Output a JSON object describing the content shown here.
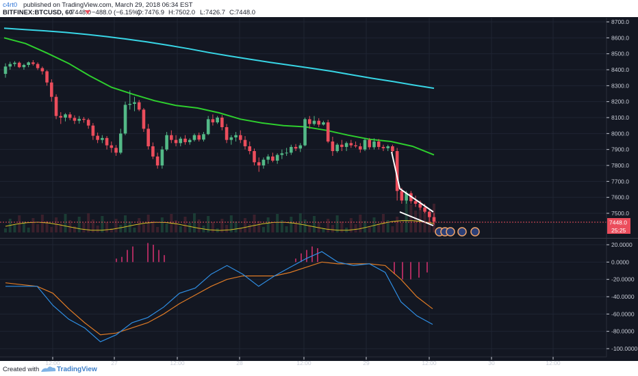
{
  "header": {
    "author": "c4rt0",
    "published": " published on TradingView.com, March 29, 2018 06:34 EST",
    "symbol": "BITFINEX:BTCUSD, 60",
    "last": "7448.0",
    "change": "−488.0 (−6.15%)",
    "ohlc": {
      "o_label": "O:",
      "o": "7476.9",
      "h_label": "H:",
      "h": "7502.0",
      "l_label": "L:",
      "l": "7426.7",
      "c_label": "C:",
      "c": "7448.0"
    }
  },
  "footer": {
    "created_with": "Created with",
    "brand": "TradingView"
  },
  "colors": {
    "background": "#131722",
    "grid": "#1f2433",
    "bull": "#53b987",
    "bear": "#eb4d5c",
    "ma_cyan": "#38d6e6",
    "ma_green": "#2ecf2e",
    "ma_yellow": "#d4c226",
    "macd_line": "#2f8fe5",
    "signal_line": "#e07b25",
    "histogram": "#d0306d",
    "price_tag": "#eb4d5c",
    "trendlines": "#ffffff"
  },
  "chart_data": [
    {
      "type": "candlestick",
      "title": "BITFINEX:BTCUSD, 60",
      "ylim": [
        7400,
        8760
      ],
      "yticks": [
        "8700.0",
        "8600.0",
        "8500.0",
        "8400.0",
        "8300.0",
        "8200.0",
        "8100.0",
        "8000.0",
        "7900.0",
        "7800.0",
        "7700.0",
        "7600.0",
        "7500.0"
      ],
      "x_ticks": [
        "12:00",
        "27",
        "12:00",
        "28",
        "12:00",
        "29",
        "12:00",
        "30",
        "12:00"
      ],
      "last_price_tag": "7448.0",
      "countdown_tag": "25:25",
      "candles": [
        [
          8374,
          8440,
          8350,
          8420
        ],
        [
          8420,
          8450,
          8400,
          8436
        ],
        [
          8436,
          8454,
          8420,
          8444
        ],
        [
          8444,
          8452,
          8410,
          8416
        ],
        [
          8416,
          8438,
          8400,
          8430
        ],
        [
          8430,
          8452,
          8416,
          8446
        ],
        [
          8446,
          8460,
          8426,
          8436
        ],
        [
          8436,
          8446,
          8398,
          8410
        ],
        [
          8410,
          8420,
          8370,
          8390
        ],
        [
          8390,
          8398,
          8300,
          8320
        ],
        [
          8320,
          8340,
          8200,
          8230
        ],
        [
          8230,
          8246,
          8090,
          8110
        ],
        [
          8110,
          8134,
          8060,
          8100
        ],
        [
          8100,
          8128,
          8076,
          8120
        ],
        [
          8120,
          8134,
          8084,
          8098
        ],
        [
          8098,
          8114,
          8060,
          8080
        ],
        [
          8080,
          8110,
          8062,
          8092
        ],
        [
          8092,
          8104,
          8068,
          8086
        ],
        [
          8086,
          8096,
          8030,
          8050
        ],
        [
          8050,
          8066,
          7960,
          7986
        ],
        [
          7986,
          8006,
          7940,
          7960
        ],
        [
          7960,
          7990,
          7940,
          7972
        ],
        [
          7972,
          7984,
          7900,
          7926
        ],
        [
          7926,
          7950,
          7880,
          7910
        ],
        [
          7910,
          7928,
          7860,
          7880
        ],
        [
          7880,
          8030,
          7870,
          8000
        ],
        [
          8000,
          8200,
          7990,
          8180
        ],
        [
          8180,
          8270,
          8150,
          8186
        ],
        [
          8186,
          8230,
          8140,
          8196
        ],
        [
          8196,
          8210,
          8140,
          8150
        ],
        [
          8150,
          8160,
          8010,
          8030
        ],
        [
          8030,
          8060,
          7900,
          7920
        ],
        [
          7920,
          7944,
          7840,
          7856
        ],
        [
          7856,
          7880,
          7780,
          7800
        ],
        [
          7800,
          7920,
          7780,
          7900
        ],
        [
          7900,
          8010,
          7890,
          7990
        ],
        [
          7990,
          8020,
          7940,
          7960
        ],
        [
          7960,
          7990,
          7920,
          7940
        ],
        [
          7940,
          7980,
          7920,
          7968
        ],
        [
          7968,
          7990,
          7930,
          7946
        ],
        [
          7946,
          7970,
          7930,
          7960
        ],
        [
          7960,
          8000,
          7950,
          7990
        ],
        [
          7990,
          8006,
          7950,
          7962
        ],
        [
          7962,
          8010,
          7950,
          7996
        ],
        [
          7996,
          8110,
          7990,
          8090
        ],
        [
          8090,
          8120,
          8050,
          8070
        ],
        [
          8070,
          8110,
          8060,
          8100
        ],
        [
          8100,
          8116,
          8020,
          8040
        ],
        [
          8040,
          8060,
          7940,
          7960
        ],
        [
          7960,
          7990,
          7930,
          7976
        ],
        [
          7976,
          8010,
          7950,
          7990
        ],
        [
          7990,
          8020,
          7940,
          7960
        ],
        [
          7960,
          7984,
          7900,
          7920
        ],
        [
          7920,
          7950,
          7870,
          7890
        ],
        [
          7890,
          7906,
          7800,
          7820
        ],
        [
          7820,
          7850,
          7760,
          7800
        ],
        [
          7800,
          7850,
          7780,
          7836
        ],
        [
          7836,
          7870,
          7810,
          7856
        ],
        [
          7856,
          7880,
          7820,
          7830
        ],
        [
          7830,
          7876,
          7810,
          7866
        ],
        [
          7866,
          7900,
          7840,
          7876
        ],
        [
          7876,
          7910,
          7860,
          7880
        ],
        [
          7880,
          7930,
          7866,
          7916
        ],
        [
          7916,
          7934,
          7890,
          7906
        ],
        [
          7906,
          7940,
          7884,
          7926
        ],
        [
          7926,
          8100,
          7920,
          8090
        ],
        [
          8090,
          8110,
          8030,
          8060
        ],
        [
          8060,
          8110,
          8050,
          8080
        ],
        [
          8080,
          8096,
          8040,
          8056
        ],
        [
          8056,
          8080,
          8050,
          8070
        ],
        [
          8070,
          8086,
          7940,
          7950
        ],
        [
          7950,
          7980,
          7860,
          7890
        ],
        [
          7890,
          7940,
          7880,
          7930
        ],
        [
          7930,
          7960,
          7890,
          7916
        ],
        [
          7916,
          7950,
          7890,
          7940
        ],
        [
          7940,
          7960,
          7910,
          7926
        ],
        [
          7926,
          7950,
          7910,
          7920
        ],
        [
          7920,
          7940,
          7880,
          7900
        ],
        [
          7900,
          7970,
          7890,
          7960
        ],
        [
          7960,
          7972,
          7900,
          7914
        ],
        [
          7914,
          7970,
          7900,
          7950
        ],
        [
          7950,
          7966,
          7900,
          7916
        ],
        [
          7916,
          7930,
          7890,
          7908
        ],
        [
          7908,
          7930,
          7890,
          7920
        ],
        [
          7920,
          7930,
          7880,
          7890
        ],
        [
          7890,
          7910,
          7580,
          7640
        ],
        [
          7640,
          7660,
          7560,
          7580
        ],
        [
          7580,
          7640,
          7560,
          7626
        ],
        [
          7626,
          7640,
          7560,
          7576
        ],
        [
          7576,
          7610,
          7540,
          7560
        ],
        [
          7560,
          7580,
          7520,
          7536
        ],
        [
          7536,
          7560,
          7500,
          7510
        ],
        [
          7510,
          7520,
          7440,
          7476
        ],
        [
          7476,
          7502,
          7426,
          7448
        ]
      ],
      "ma_cyan": [
        8660,
        8652,
        8644,
        8634,
        8622,
        8608,
        8592,
        8574,
        8554,
        8532,
        8508,
        8486,
        8466,
        8446,
        8428,
        8410,
        8390,
        8368,
        8346,
        8326,
        8304,
        8284
      ],
      "ma_green": [
        8600,
        8564,
        8504,
        8440,
        8360,
        8290,
        8246,
        8206,
        8176,
        8160,
        8130,
        8090,
        8066,
        8050,
        8042,
        8020,
        7990,
        7964,
        7950,
        7920,
        7866
      ]
    },
    {
      "type": "line",
      "title": "",
      "ylim": [
        -102,
        24
      ],
      "yticks": [
        "20.0000",
        "0.0000",
        "-20.0000",
        "-40.0000",
        "-60.0000",
        "-80.0000",
        "-100.0000"
      ],
      "series": [
        {
          "values": [
            -28,
            -28,
            -28,
            -50,
            -66,
            -76,
            -92,
            -84,
            -70,
            -64,
            -52,
            -36,
            -30,
            -14,
            -4,
            -14,
            -28,
            -16,
            -6,
            4,
            12,
            0,
            -4,
            -2,
            -12,
            -46,
            -62,
            -72
          ]
        },
        {
          "values": [
            -24,
            -26,
            -28,
            -36,
            -54,
            -70,
            -84,
            -82,
            -76,
            -70,
            -60,
            -48,
            -38,
            -28,
            -20,
            -16,
            -16,
            -16,
            -12,
            -6,
            0,
            -2,
            -2,
            -2,
            -4,
            -20,
            -40,
            -54
          ]
        }
      ],
      "histogram": [
        4,
        6,
        14,
        18,
        22,
        20,
        14,
        8,
        4,
        10,
        14,
        18,
        16,
        -14,
        -20,
        -20,
        -18,
        -12
      ]
    }
  ]
}
